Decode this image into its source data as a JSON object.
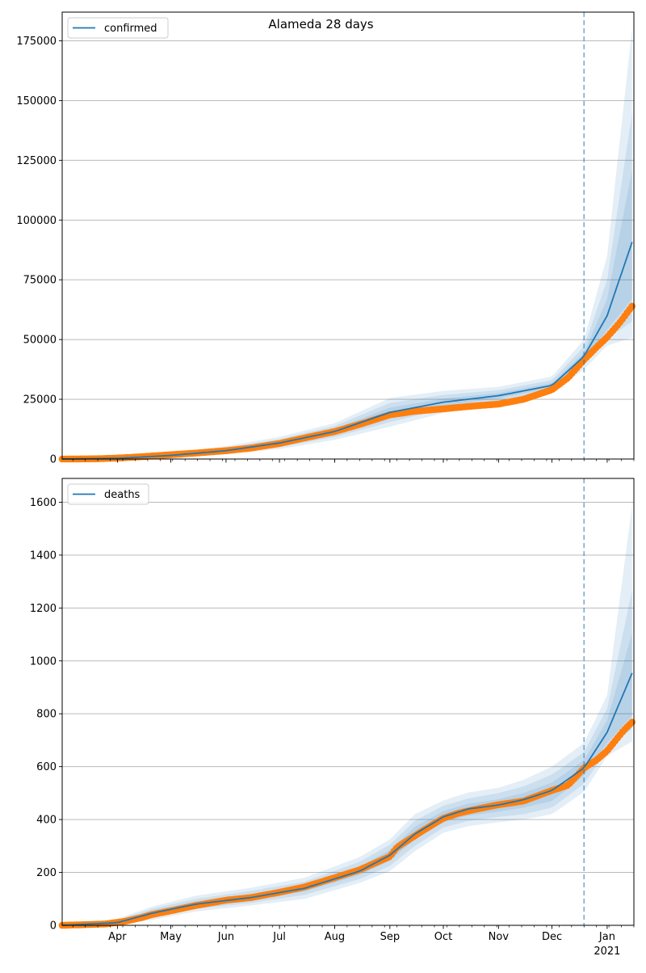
{
  "figure": {
    "title": "Alameda 28 days"
  },
  "chart_data": [
    {
      "type": "line",
      "title": "Alameda 28 days",
      "series_name": "confirmed",
      "legend_placement": "top-left",
      "grid": "horizontal",
      "colors": {
        "model_line": "#1f77b4",
        "band": "#1f77b4",
        "observed": "#ff7f0e",
        "forecast_marker": "#1f77b4"
      },
      "x_range": [
        "2020-03-01",
        "2021-01-16"
      ],
      "ylim": [
        0,
        187000
      ],
      "y_ticks": [
        0,
        25000,
        50000,
        75000,
        100000,
        125000,
        150000,
        175000
      ],
      "y_tick_labels": [
        "0",
        "25000",
        "50000",
        "75000",
        "100000",
        "125000",
        "150000",
        "175000"
      ],
      "forecast_start": "2020-12-19",
      "model": {
        "x": [
          "2020-03-01",
          "2020-04-01",
          "2020-05-01",
          "2020-06-01",
          "2020-07-01",
          "2020-08-01",
          "2020-09-01",
          "2020-10-01",
          "2020-11-01",
          "2020-12-01",
          "2020-12-19",
          "2021-01-01",
          "2021-01-16"
        ],
        "median": [
          0,
          300,
          1500,
          3500,
          6700,
          11500,
          19500,
          23800,
          26500,
          30800,
          43000,
          60000,
          93000
        ],
        "bands": [
          {
            "lower": [
              0,
              200,
              1200,
              2900,
              5800,
              10300,
              17500,
              22300,
              25400,
              29800,
              41500,
              54000,
              68000
            ],
            "upper": [
              0,
              400,
              1800,
              4100,
              7600,
              12700,
              21500,
              25300,
              27600,
              31800,
              44500,
              67000,
              125000
            ]
          },
          {
            "lower": [
              0,
              150,
              1000,
              2500,
              5000,
              9200,
              15500,
              20800,
              24300,
              28600,
              39500,
              50500,
              58000
            ],
            "upper": [
              0,
              500,
              2100,
              4700,
              8400,
              13800,
              23500,
              26800,
              28800,
              33000,
              47000,
              75000,
              150000
            ]
          },
          {
            "lower": [
              0,
              80,
              700,
              2000,
              4200,
              8000,
              13500,
              19300,
              23000,
              27300,
              37500,
              47500,
              51000
            ],
            "upper": [
              0,
              650,
              2500,
              5400,
              9300,
              15000,
              25500,
              28500,
              30200,
              34500,
              50000,
              85000,
              187000
            ]
          }
        ]
      },
      "observed": {
        "x": [
          "2020-03-01",
          "2020-03-20",
          "2020-04-01",
          "2020-04-15",
          "2020-05-01",
          "2020-05-15",
          "2020-06-01",
          "2020-06-15",
          "2020-07-01",
          "2020-07-15",
          "2020-08-01",
          "2020-08-15",
          "2020-09-01",
          "2020-09-15",
          "2020-10-01",
          "2020-10-15",
          "2020-11-01",
          "2020-11-15",
          "2020-12-01",
          "2020-12-10",
          "2020-12-19",
          "2020-12-25",
          "2021-01-01",
          "2021-01-08",
          "2021-01-16"
        ],
        "y": [
          0,
          100,
          400,
          1000,
          1800,
          2500,
          3500,
          4600,
          6500,
          8800,
          11500,
          14500,
          18500,
          20000,
          21000,
          22000,
          23000,
          25000,
          29000,
          34000,
          41500,
          46000,
          51000,
          57000,
          65000
        ]
      }
    },
    {
      "type": "line",
      "series_name": "deaths",
      "legend_placement": "top-left",
      "grid": "horizontal",
      "colors": {
        "model_line": "#1f77b4",
        "band": "#1f77b4",
        "observed": "#ff7f0e",
        "forecast_marker": "#1f77b4"
      },
      "x_range": [
        "2020-03-01",
        "2021-01-16"
      ],
      "ylim": [
        0,
        1690
      ],
      "y_ticks": [
        0,
        200,
        400,
        600,
        800,
        1000,
        1200,
        1400,
        1600
      ],
      "y_tick_labels": [
        "0",
        "200",
        "400",
        "600",
        "800",
        "1000",
        "1200",
        "1400",
        "1600"
      ],
      "forecast_start": "2020-12-19",
      "model": {
        "x": [
          "2020-03-01",
          "2020-04-01",
          "2020-04-20",
          "2020-05-15",
          "2020-06-15",
          "2020-07-15",
          "2020-08-15",
          "2020-09-01",
          "2020-09-15",
          "2020-10-01",
          "2020-10-15",
          "2020-11-01",
          "2020-11-15",
          "2020-12-01",
          "2020-12-19",
          "2021-01-01",
          "2021-01-16"
        ],
        "median": [
          0,
          10,
          45,
          80,
          105,
          140,
          205,
          265,
          345,
          410,
          440,
          455,
          475,
          510,
          595,
          730,
          970
        ],
        "bands": [
          {
            "lower": [
              0,
              5,
              35,
              70,
              95,
              128,
              190,
              245,
              325,
              390,
              415,
              430,
              445,
              470,
              565,
              690,
              800
            ],
            "upper": [
              0,
              15,
              55,
              90,
              117,
              152,
              222,
              285,
              372,
              432,
              460,
              477,
              500,
              540,
              625,
              775,
              1130
            ]
          },
          {
            "lower": [
              0,
              3,
              28,
              62,
              85,
              115,
              175,
              225,
              300,
              370,
              395,
              410,
              420,
              445,
              535,
              665,
              750
            ],
            "upper": [
              0,
              20,
              62,
              100,
              130,
              165,
              240,
              305,
              395,
              452,
              480,
              500,
              525,
              570,
              655,
              820,
              1300
            ]
          },
          {
            "lower": [
              0,
              1,
              20,
              52,
              75,
              100,
              160,
              205,
              280,
              350,
              375,
              390,
              400,
              420,
              505,
              640,
              700
            ],
            "upper": [
              0,
              25,
              70,
              112,
              142,
              180,
              258,
              325,
              420,
              472,
              502,
              520,
              550,
              600,
              690,
              870,
              1640
            ]
          }
        ]
      },
      "observed": {
        "x": [
          "2020-03-01",
          "2020-03-25",
          "2020-04-05",
          "2020-04-15",
          "2020-04-20",
          "2020-05-01",
          "2020-05-15",
          "2020-06-01",
          "2020-06-15",
          "2020-07-01",
          "2020-07-15",
          "2020-08-01",
          "2020-08-15",
          "2020-09-01",
          "2020-09-05",
          "2020-09-20",
          "2020-10-01",
          "2020-10-10",
          "2020-10-20",
          "2020-10-31",
          "2020-11-15",
          "2020-12-01",
          "2020-12-10",
          "2020-12-19",
          "2020-12-26",
          "2021-01-01",
          "2021-01-10",
          "2021-01-16"
        ],
        "y": [
          0,
          5,
          15,
          30,
          40,
          55,
          75,
          95,
          105,
          125,
          145,
          180,
          210,
          260,
          295,
          360,
          405,
          425,
          440,
          455,
          470,
          510,
          530,
          595,
          625,
          660,
          735,
          775
        ]
      }
    }
  ],
  "x_axis": {
    "tick_labels": [
      "Apr",
      "May",
      "Jun",
      "Jul",
      "Aug",
      "Sep",
      "Oct",
      "Nov",
      "Dec",
      "Jan"
    ],
    "tick_dates": [
      "2020-04-01",
      "2020-05-01",
      "2020-06-01",
      "2020-07-01",
      "2020-08-01",
      "2020-09-01",
      "2020-10-01",
      "2020-11-01",
      "2020-12-01",
      "2021-01-01"
    ],
    "year_label": "2021"
  }
}
